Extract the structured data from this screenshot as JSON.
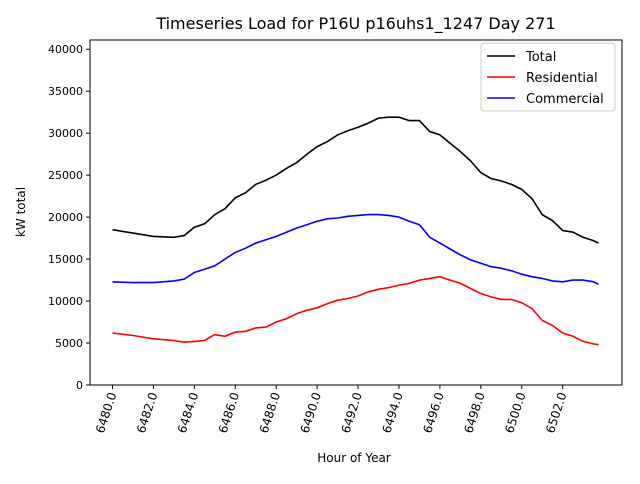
{
  "chart_data": {
    "type": "line",
    "title": "Timeseries Load for P16U p16uhs1_1247  Day 271",
    "xlabel": "Hour of Year",
    "ylabel": "kW total",
    "xlim": [
      6478.9,
      6504.9
    ],
    "ylim": [
      0,
      41100
    ],
    "xticks": [
      6480,
      6482,
      6484,
      6486,
      6488,
      6490,
      6492,
      6494,
      6496,
      6498,
      6500,
      6502
    ],
    "xtick_labels": [
      "6480.0",
      "6482.0",
      "6484.0",
      "6486.0",
      "6488.0",
      "6490.0",
      "6492.0",
      "6494.0",
      "6496.0",
      "6498.0",
      "6500.0",
      "6502.0"
    ],
    "yticks": [
      0,
      5000,
      10000,
      15000,
      20000,
      25000,
      30000,
      35000,
      40000
    ],
    "ytick_labels": [
      "0",
      "5000",
      "10000",
      "15000",
      "20000",
      "25000",
      "30000",
      "35000",
      "40000"
    ],
    "grid": false,
    "legend_position": "top-right",
    "x": [
      6480,
      6481,
      6482,
      6483,
      6483.5,
      6484,
      6484.5,
      6485,
      6485.5,
      6486,
      6486.5,
      6487,
      6487.5,
      6488,
      6488.5,
      6489,
      6489.5,
      6490,
      6490.5,
      6491,
      6491.5,
      6492,
      6492.5,
      6493,
      6493.5,
      6494,
      6494.5,
      6495,
      6495.5,
      6496,
      6496.5,
      6497,
      6497.5,
      6498,
      6498.5,
      6499,
      6499.5,
      6500,
      6500.5,
      6501,
      6501.5,
      6502,
      6502.5,
      6503,
      6503.5,
      6503.75
    ],
    "series": [
      {
        "name": "Total",
        "color": "#000000",
        "values": [
          18500,
          18100,
          17700,
          17600,
          17800,
          18800,
          19200,
          20300,
          21000,
          22300,
          22900,
          23900,
          24400,
          25000,
          25800,
          26500,
          27500,
          28400,
          29000,
          29800,
          30300,
          30700,
          31200,
          31800,
          31900,
          31900,
          31500,
          31500,
          30200,
          29800,
          28800,
          27800,
          26700,
          25300,
          24600,
          24300,
          23900,
          23300,
          22200,
          20300,
          19600,
          18400,
          18200,
          17600,
          17200,
          16900
        ]
      },
      {
        "name": "Residential",
        "color": "#ff0000",
        "values": [
          6200,
          5900,
          5500,
          5300,
          5100,
          5200,
          5300,
          6000,
          5800,
          6300,
          6400,
          6800,
          6900,
          7500,
          7900,
          8500,
          8900,
          9200,
          9700,
          10100,
          10300,
          10600,
          11100,
          11400,
          11600,
          11900,
          12100,
          12500,
          12700,
          12900,
          12500,
          12100,
          11500,
          10900,
          10500,
          10200,
          10200,
          9800,
          9100,
          7700,
          7100,
          6200,
          5800,
          5200,
          4900,
          4800
        ]
      },
      {
        "name": "Commercial",
        "color": "#0000ff",
        "values": [
          12300,
          12200,
          12200,
          12400,
          12600,
          13400,
          13800,
          14200,
          15000,
          15800,
          16300,
          16900,
          17300,
          17700,
          18200,
          18700,
          19100,
          19500,
          19800,
          19900,
          20100,
          20200,
          20300,
          20300,
          20200,
          20000,
          19500,
          19100,
          17600,
          16900,
          16200,
          15500,
          14900,
          14500,
          14100,
          13900,
          13600,
          13200,
          12900,
          12700,
          12400,
          12300,
          12500,
          12500,
          12300,
          12000
        ]
      }
    ]
  }
}
